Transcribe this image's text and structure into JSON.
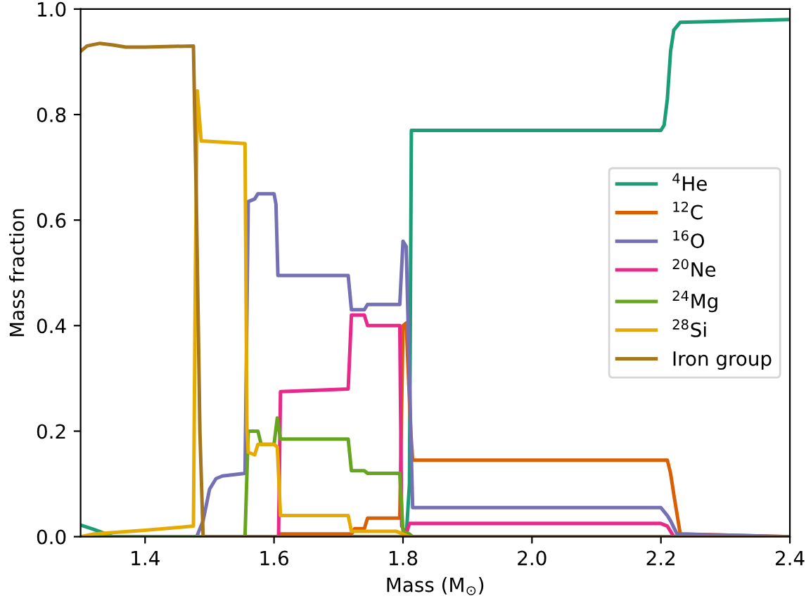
{
  "chart_data": {
    "type": "line",
    "xlabel": "Mass (M$_{⊙}$)",
    "ylabel": "Mass fraction",
    "xlim": [
      1.3,
      2.4
    ],
    "ylim": [
      0,
      1.0
    ],
    "xticks": [
      1.4,
      1.6,
      1.8,
      {
        "value": 2.0,
        "label": "2.0"
      },
      2.2,
      2.4
    ],
    "yticks": [
      {
        "value": 0,
        "label": "0.0"
      },
      0.2,
      0.4,
      0.6,
      0.8,
      {
        "value": 1.0,
        "label": "1.0"
      }
    ],
    "grid": false,
    "legend": "right",
    "marker": "none",
    "line_style": "solid",
    "series": [
      {
        "name": "$^{4}$He",
        "color": "#1b9e77",
        "x": [
          1.3,
          1.32,
          1.34,
          1.35,
          1.805,
          1.81,
          1.813,
          2.2,
          2.205,
          2.21,
          2.215,
          2.22,
          2.23,
          2.4
        ],
        "values": [
          0.022,
          0.014,
          0.005,
          0,
          0,
          0.1,
          0.77,
          0.77,
          0.78,
          0.83,
          0.92,
          0.96,
          0.975,
          0.98
        ]
      },
      {
        "name": "$^{12}$C",
        "color": "#d95f02",
        "x": [
          1.3,
          1.605,
          1.61,
          1.72,
          1.725,
          1.74,
          1.745,
          1.795,
          1.8,
          1.805,
          1.812,
          1.815,
          2.21,
          2.215,
          2.22,
          2.23,
          2.4
        ],
        "values": [
          0,
          0,
          0.005,
          0.005,
          0.015,
          0.015,
          0.035,
          0.035,
          0.4,
          0.405,
          0.2,
          0.145,
          0.145,
          0.12,
          0.08,
          0.005,
          0
        ]
      },
      {
        "name": "$^{16}$O",
        "color": "#7570b3",
        "x": [
          1.3,
          1.48,
          1.49,
          1.5,
          1.51,
          1.52,
          1.555,
          1.56,
          1.57,
          1.575,
          1.6,
          1.603,
          1.606,
          1.715,
          1.72,
          1.74,
          1.745,
          1.795,
          1.8,
          1.805,
          1.81,
          1.815,
          2.2,
          2.21,
          2.215,
          2.225,
          2.4
        ],
        "values": [
          0,
          0,
          0.03,
          0.09,
          0.11,
          0.115,
          0.12,
          0.635,
          0.64,
          0.65,
          0.65,
          0.63,
          0.495,
          0.495,
          0.43,
          0.43,
          0.44,
          0.44,
          0.56,
          0.55,
          0.3,
          0.055,
          0.055,
          0.04,
          0.03,
          0.005,
          0
        ]
      },
      {
        "name": "$^{20}$Ne",
        "color": "#e7298a",
        "x": [
          1.3,
          1.607,
          1.61,
          1.715,
          1.72,
          1.74,
          1.745,
          1.795,
          1.798,
          1.805,
          1.81,
          2.2,
          2.21,
          2.22,
          2.4
        ],
        "values": [
          0,
          0,
          0.275,
          0.28,
          0.42,
          0.42,
          0.4,
          0.4,
          0.02,
          0.005,
          0.025,
          0.025,
          0.02,
          0,
          0
        ]
      },
      {
        "name": "$^{24}$Mg",
        "color": "#66a61e",
        "x": [
          1.3,
          1.555,
          1.56,
          1.575,
          1.58,
          1.6,
          1.605,
          1.61,
          1.715,
          1.72,
          1.74,
          1.745,
          1.795,
          1.8,
          1.81,
          1.815,
          2.4
        ],
        "values": [
          0,
          0,
          0.2,
          0.2,
          0.175,
          0.175,
          0.225,
          0.185,
          0.185,
          0.125,
          0.125,
          0.12,
          0.12,
          0.01,
          0.005,
          0,
          0
        ]
      },
      {
        "name": "$^{28}$Si",
        "color": "#e6ab02",
        "x": [
          1.3,
          1.32,
          1.4,
          1.475,
          1.478,
          1.481,
          1.487,
          1.555,
          1.558,
          1.56,
          1.57,
          1.575,
          1.6,
          1.605,
          1.61,
          1.715,
          1.72,
          1.79,
          1.8,
          1.81,
          2.4
        ],
        "values": [
          0,
          0.005,
          0.012,
          0.02,
          0.5,
          0.845,
          0.75,
          0.745,
          0.2,
          0.16,
          0.155,
          0.175,
          0.175,
          0.17,
          0.04,
          0.04,
          0.01,
          0.01,
          0.005,
          0,
          0
        ]
      },
      {
        "name": "Iron group",
        "color": "#a6761d",
        "x": [
          1.3,
          1.31,
          1.33,
          1.35,
          1.37,
          1.4,
          1.475,
          1.48,
          1.485,
          1.49,
          2.4
        ],
        "values": [
          0.92,
          0.93,
          0.935,
          0.932,
          0.928,
          0.928,
          0.93,
          0.6,
          0.2,
          0,
          0
        ]
      }
    ]
  }
}
